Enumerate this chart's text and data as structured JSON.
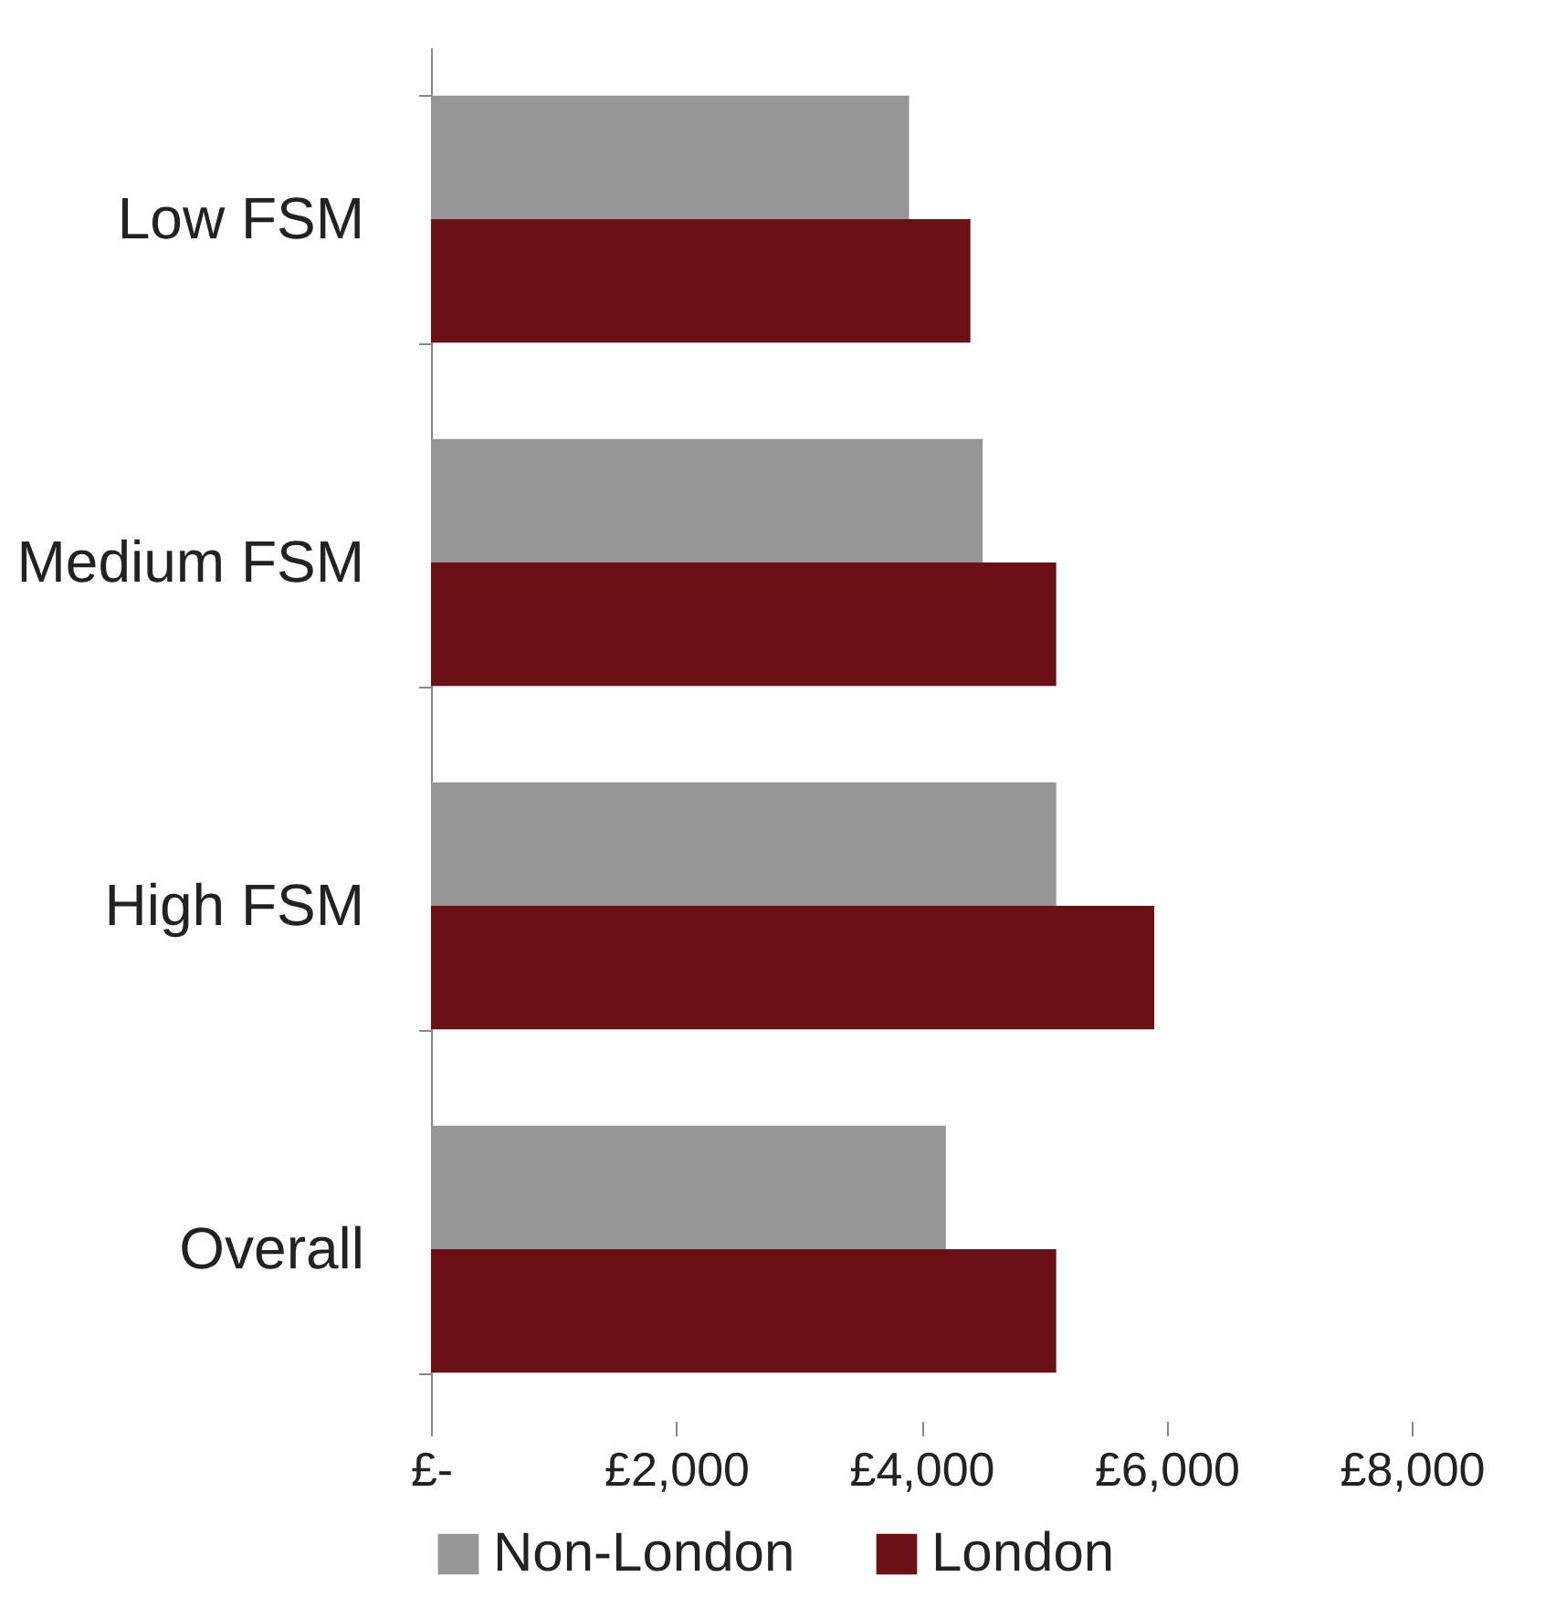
{
  "chart_data": {
    "type": "bar",
    "orientation": "horizontal",
    "categories": [
      "Low FSM",
      "Medium FSM",
      "High FSM",
      "Overall"
    ],
    "series": [
      {
        "name": "Non-London",
        "color": "#969696",
        "values": [
          3900,
          4500,
          5100,
          4200
        ]
      },
      {
        "name": "London",
        "color": "#6b1116",
        "values": [
          4400,
          5100,
          5900,
          5100
        ]
      }
    ],
    "xlim": [
      0,
      8000
    ],
    "xticks": [
      {
        "value": 0,
        "label": "£-"
      },
      {
        "value": 2000,
        "label": "£2,000"
      },
      {
        "value": 4000,
        "label": "£4,000"
      },
      {
        "value": 6000,
        "label": "£6,000"
      },
      {
        "value": 8000,
        "label": "£8,000"
      }
    ],
    "grid": false,
    "legend": "bottom"
  }
}
